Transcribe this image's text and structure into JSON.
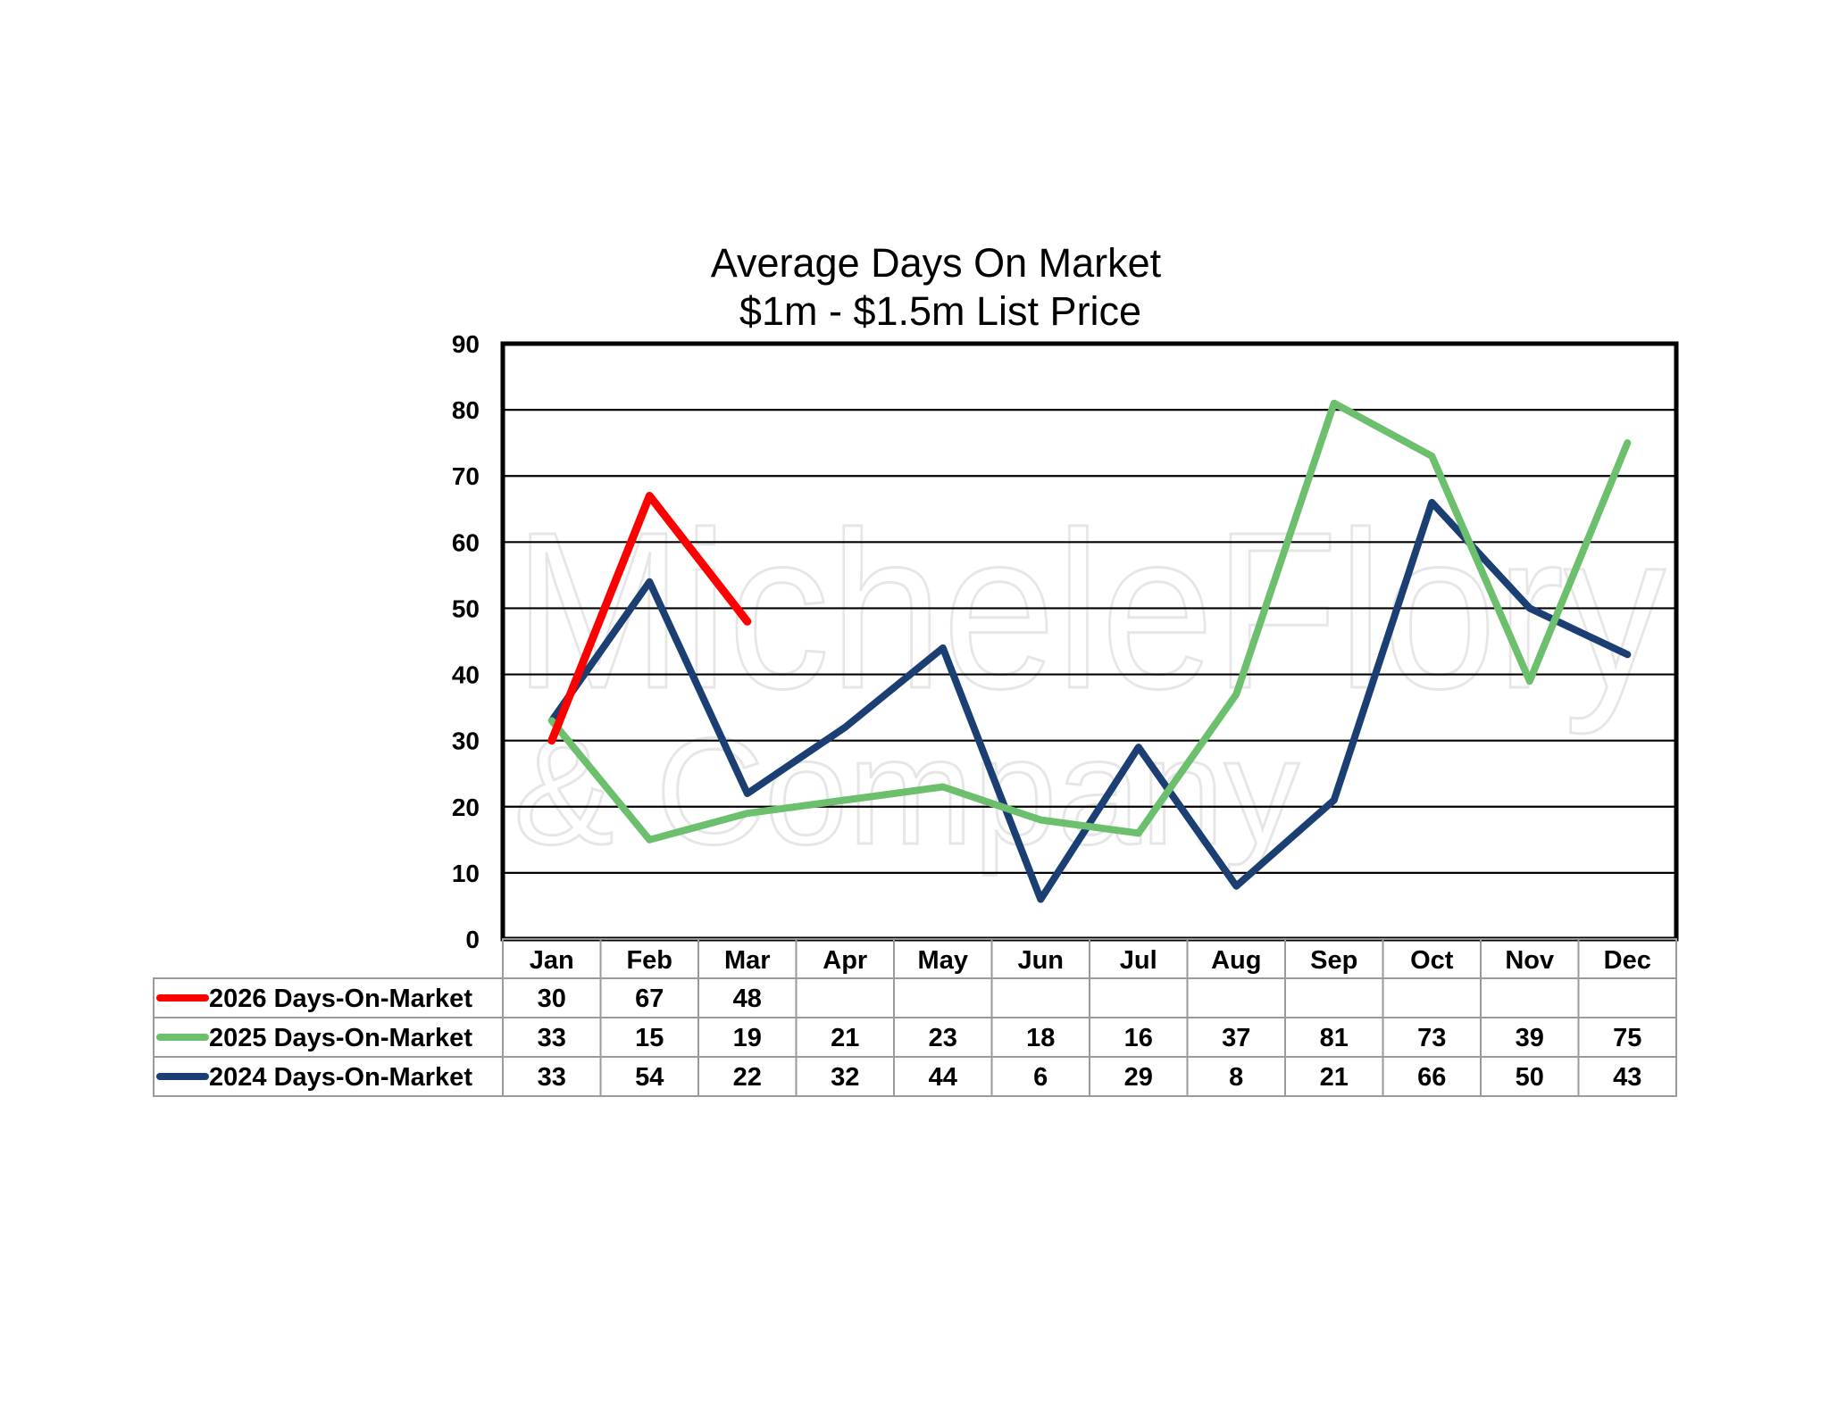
{
  "chart_data": {
    "type": "line",
    "title": "Average Days On Market",
    "subtitle": "$1m - $1.5m List Price",
    "categories": [
      "Jan",
      "Feb",
      "Mar",
      "Apr",
      "May",
      "Jun",
      "Jul",
      "Aug",
      "Sep",
      "Oct",
      "Nov",
      "Dec"
    ],
    "ylim": [
      0,
      90
    ],
    "yticks": [
      "0",
      "10",
      "20",
      "30",
      "40",
      "50",
      "60",
      "70",
      "80",
      "90"
    ],
    "grid": true,
    "legend_placement": "data-table-left",
    "series": [
      {
        "name": "2026 Days-On-Market",
        "color": "#ff0000",
        "values": [
          30,
          67,
          48,
          null,
          null,
          null,
          null,
          null,
          null,
          null,
          null,
          null
        ]
      },
      {
        "name": "2025 Days-On-Market",
        "color": "#6cbf6c",
        "values": [
          33,
          15,
          19,
          21,
          23,
          18,
          16,
          37,
          81,
          73,
          39,
          75
        ]
      },
      {
        "name": "2024 Days-On-Market",
        "color": "#1b3f73",
        "values": [
          33,
          54,
          22,
          32,
          44,
          6,
          29,
          8,
          21,
          66,
          50,
          43
        ]
      }
    ],
    "watermark": [
      "MicheleFlory",
      "& Company"
    ]
  }
}
